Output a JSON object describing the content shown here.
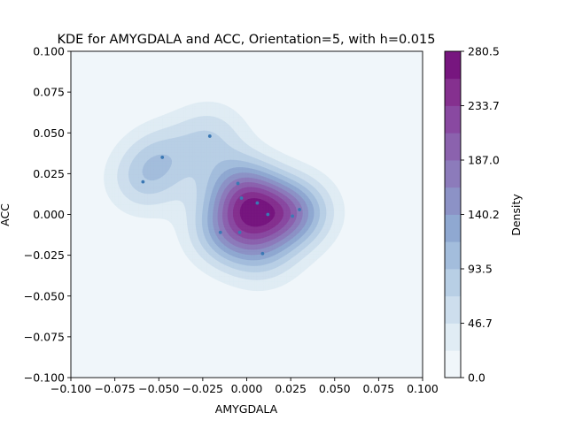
{
  "chart_data": {
    "type": "heatmap",
    "subtype": "kde-contourf",
    "title": "KDE for AMYGDALA and ACC, Orientation=5, with h=0.015",
    "xlabel": "AMYGDALA",
    "ylabel": "ACC",
    "xlim": [
      -0.1,
      0.1
    ],
    "ylim": [
      -0.1,
      0.1
    ],
    "x_ticks": [
      "−0.100",
      "−0.075",
      "−0.050",
      "−0.025",
      "0.000",
      "0.025",
      "0.050",
      "0.075",
      "0.100"
    ],
    "y_ticks": [
      "−0.100",
      "−0.075",
      "−0.050",
      "−0.025",
      "0.000",
      "0.025",
      "0.050",
      "0.075",
      "0.100"
    ],
    "bandwidth": 0.015,
    "colormap": "BuPu",
    "colorbar": {
      "label": "Density",
      "min": 0.0,
      "max": 280.5,
      "ticks": [
        "0.0",
        "46.7",
        "93.5",
        "140.2",
        "187.0",
        "233.7",
        "280.5"
      ],
      "levels": [
        0,
        23.4,
        46.7,
        70.1,
        93.5,
        116.9,
        140.2,
        163.6,
        187.0,
        210.4,
        233.7,
        257.1,
        280.5
      ],
      "colors": [
        "#f0f6fa",
        "#e0ecf4",
        "#cddeed",
        "#b8cfe5",
        "#a3bddc",
        "#8fa8d1",
        "#8c92c6",
        "#8c7bbb",
        "#8b62ae",
        "#8949a1",
        "#85308f",
        "#77167f",
        "#5c0e61"
      ]
    },
    "points": [
      {
        "x": -0.059,
        "y": 0.02
      },
      {
        "x": -0.048,
        "y": 0.035
      },
      {
        "x": -0.021,
        "y": 0.048
      },
      {
        "x": -0.015,
        "y": -0.011
      },
      {
        "x": -0.005,
        "y": 0.019
      },
      {
        "x": -0.003,
        "y": 0.01
      },
      {
        "x": 0.006,
        "y": 0.007
      },
      {
        "x": 0.012,
        "y": 0.0
      },
      {
        "x": -0.004,
        "y": -0.011
      },
      {
        "x": 0.009,
        "y": -0.024
      },
      {
        "x": 0.026,
        "y": -0.001
      },
      {
        "x": 0.03,
        "y": 0.003
      }
    ],
    "point_color": "#3b78b4",
    "grid": false
  }
}
